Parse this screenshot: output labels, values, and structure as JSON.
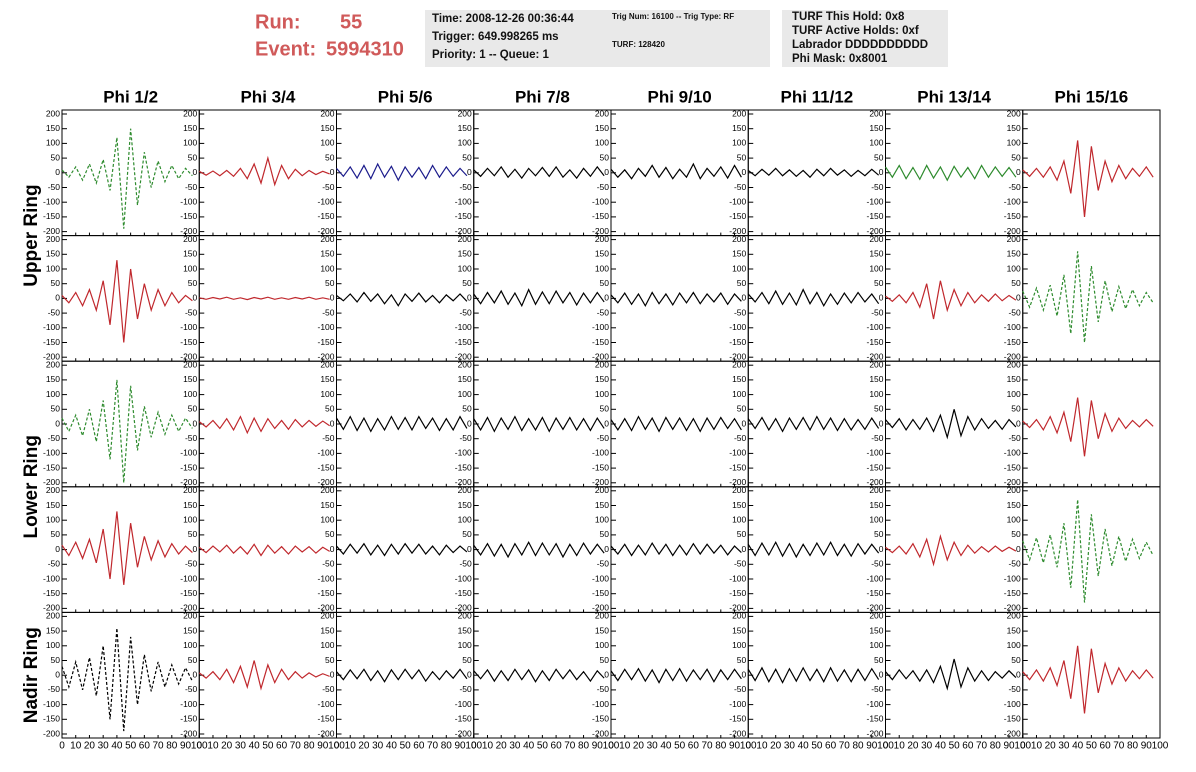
{
  "header": {
    "run_label": "Run:",
    "run": "55",
    "event_label": "Event:",
    "event": "5994310",
    "box1": [
      "Time: 2008-12-26 00:36:44",
      "Trigger: 649.998265 ms",
      "Priority: 1 -- Queue: 1"
    ],
    "box2": [
      "Trig Num: 16100 -- Trig Type: RF",
      "TURF: 128420"
    ],
    "box3": [
      "TURF This Hold: 0x8",
      "TURF Active Holds: 0xf",
      "Labrador DDDDDDDDDD",
      "Phi Mask: 0x8001"
    ]
  },
  "chart_data": {
    "type": "line",
    "columns": [
      "Phi 1/2",
      "Phi 3/4",
      "Phi 5/6",
      "Phi 7/8",
      "Phi 9/10",
      "Phi 11/12",
      "Phi 13/14",
      "Phi 15/16"
    ],
    "rings": [
      "Upper Ring",
      "Lower Ring",
      "Nadir Ring"
    ],
    "xlim": [
      0,
      100
    ],
    "xticks": [
      0,
      10,
      20,
      30,
      40,
      50,
      60,
      70,
      80,
      90,
      100
    ],
    "ylim": [
      -200,
      200
    ],
    "yticks": [
      -200,
      -150,
      -100,
      -50,
      0,
      50,
      100,
      150,
      200
    ],
    "x": [
      0,
      5,
      10,
      15,
      20,
      25,
      30,
      35,
      40,
      45,
      50,
      55,
      60,
      65,
      70,
      75,
      80,
      85,
      90,
      95
    ],
    "panels": [
      [
        {
          "color": "#2e8b2e",
          "dash": true,
          "values": [
            10,
            -15,
            20,
            -25,
            30,
            -35,
            45,
            -60,
            120,
            -190,
            150,
            -110,
            70,
            -50,
            40,
            -30,
            25,
            -20,
            15,
            -10
          ]
        },
        {
          "color": "#c0282d",
          "dash": false,
          "values": [
            5,
            -8,
            6,
            -10,
            8,
            -12,
            15,
            -20,
            30,
            -35,
            50,
            -40,
            25,
            -20,
            12,
            -10,
            8,
            -6,
            5,
            -4
          ]
        },
        {
          "color": "#1c1c8c",
          "dash": false,
          "values": [
            15,
            -12,
            20,
            -18,
            25,
            -20,
            30,
            -15,
            22,
            -25,
            20,
            -15,
            18,
            -20,
            25,
            -15,
            20,
            -12,
            15,
            -10
          ]
        },
        {
          "color": "#000000",
          "dash": false,
          "values": [
            10,
            -12,
            15,
            -10,
            20,
            -15,
            12,
            -18,
            15,
            -10,
            18,
            -12,
            20,
            -15,
            10,
            -18,
            15,
            -12,
            20,
            -10
          ]
        },
        {
          "color": "#000000",
          "dash": false,
          "values": [
            12,
            -15,
            10,
            -20,
            15,
            -12,
            25,
            -15,
            18,
            -20,
            12,
            -15,
            30,
            -20,
            15,
            -12,
            20,
            -18,
            25,
            -15
          ]
        },
        {
          "color": "#000000",
          "dash": false,
          "values": [
            8,
            -10,
            12,
            -8,
            15,
            -10,
            10,
            -12,
            8,
            -15,
            12,
            -10,
            15,
            -8,
            10,
            -12,
            8,
            -10,
            12,
            -8
          ]
        },
        {
          "color": "#2e8b2e",
          "dash": false,
          "values": [
            20,
            -15,
            25,
            -20,
            18,
            -22,
            25,
            -18,
            20,
            -25,
            22,
            -15,
            18,
            -20,
            25,
            -15,
            20,
            -12,
            18,
            -15
          ]
        },
        {
          "color": "#c0282d",
          "dash": false,
          "values": [
            10,
            -12,
            15,
            -15,
            20,
            -25,
            40,
            -70,
            110,
            -150,
            90,
            -60,
            40,
            -30,
            25,
            -20,
            15,
            -12,
            20,
            -15
          ]
        }
      ],
      [
        {
          "color": "#c0282d",
          "dash": false,
          "values": [
            10,
            -15,
            20,
            -25,
            30,
            -40,
            60,
            -90,
            130,
            -150,
            100,
            -70,
            50,
            -40,
            30,
            -25,
            20,
            -15,
            10,
            -8
          ]
        },
        {
          "color": "#c0282d",
          "dash": false,
          "values": [
            2,
            -3,
            3,
            -2,
            4,
            -3,
            2,
            -4,
            3,
            -2,
            4,
            -3,
            2,
            -3,
            3,
            -2,
            4,
            -3,
            2,
            -3
          ]
        },
        {
          "color": "#000000",
          "dash": false,
          "values": [
            10,
            -8,
            15,
            -12,
            20,
            -10,
            15,
            -18,
            12,
            -25,
            15,
            -10,
            18,
            -12,
            10,
            -15,
            12,
            -8,
            15,
            -10
          ]
        },
        {
          "color": "#000000",
          "dash": false,
          "values": [
            15,
            -18,
            20,
            -15,
            25,
            -20,
            18,
            -25,
            30,
            -20,
            22,
            -18,
            25,
            -15,
            20,
            -22,
            18,
            -15,
            20,
            -12
          ]
        },
        {
          "color": "#000000",
          "dash": false,
          "values": [
            12,
            -15,
            18,
            -20,
            15,
            -25,
            20,
            -18,
            15,
            -22,
            18,
            -15,
            20,
            -18,
            15,
            -12,
            18,
            -20,
            15,
            -10
          ]
        },
        {
          "color": "#000000",
          "dash": false,
          "values": [
            15,
            -12,
            20,
            -18,
            25,
            -20,
            18,
            -22,
            30,
            -18,
            20,
            -25,
            15,
            -20,
            18,
            -15,
            20,
            -12,
            15,
            -18
          ]
        },
        {
          "color": "#c0282d",
          "dash": false,
          "values": [
            8,
            -10,
            12,
            -15,
            20,
            -30,
            50,
            -70,
            60,
            -40,
            30,
            -25,
            20,
            -15,
            12,
            -10,
            15,
            -8,
            10,
            -6
          ]
        },
        {
          "color": "#2e8b2e",
          "dash": true,
          "values": [
            25,
            -30,
            35,
            -40,
            45,
            -60,
            80,
            -120,
            160,
            -150,
            110,
            -80,
            60,
            -45,
            40,
            -35,
            30,
            -25,
            20,
            -15
          ]
        }
      ],
      [
        {
          "color": "#2e8b2e",
          "dash": true,
          "values": [
            20,
            -25,
            30,
            -40,
            50,
            -60,
            80,
            -120,
            150,
            -200,
            130,
            -90,
            60,
            -45,
            40,
            -35,
            30,
            -25,
            20,
            -15
          ]
        },
        {
          "color": "#c0282d",
          "dash": false,
          "values": [
            8,
            -10,
            12,
            -15,
            18,
            -20,
            25,
            -30,
            20,
            -25,
            18,
            -15,
            12,
            -18,
            15,
            -10,
            12,
            -8,
            10,
            -6
          ]
        },
        {
          "color": "#000000",
          "dash": false,
          "values": [
            20,
            -18,
            25,
            -22,
            20,
            -25,
            18,
            -20,
            25,
            -18,
            22,
            -20,
            25,
            -15,
            20,
            -22,
            18,
            -20,
            25,
            -15
          ]
        },
        {
          "color": "#000000",
          "dash": false,
          "values": [
            18,
            -20,
            22,
            -25,
            20,
            -18,
            25,
            -22,
            18,
            -20,
            22,
            -25,
            20,
            -18,
            22,
            -20,
            18,
            -22,
            20,
            -15
          ]
        },
        {
          "color": "#000000",
          "dash": false,
          "values": [
            15,
            -20,
            18,
            -22,
            25,
            -18,
            20,
            -25,
            22,
            -18,
            20,
            -22,
            18,
            -25,
            20,
            -18,
            22,
            -15,
            18,
            -20
          ]
        },
        {
          "color": "#000000",
          "dash": false,
          "values": [
            18,
            -15,
            22,
            -20,
            18,
            -25,
            20,
            -18,
            22,
            -20,
            25,
            -18,
            20,
            -22,
            18,
            -20,
            15,
            -18,
            20,
            -15
          ]
        },
        {
          "color": "#000000",
          "dash": false,
          "values": [
            15,
            -12,
            18,
            -20,
            15,
            -18,
            20,
            -25,
            30,
            -45,
            50,
            -40,
            25,
            -20,
            18,
            -15,
            12,
            -18,
            15,
            -10
          ]
        },
        {
          "color": "#c0282d",
          "dash": false,
          "values": [
            10,
            -12,
            15,
            -20,
            25,
            -30,
            40,
            -60,
            90,
            -110,
            80,
            -50,
            35,
            -25,
            20,
            -15,
            12,
            -10,
            15,
            -8
          ]
        }
      ],
      [
        {
          "color": "#c0282d",
          "dash": false,
          "values": [
            15,
            -20,
            25,
            -30,
            35,
            -45,
            70,
            -100,
            130,
            -120,
            90,
            -60,
            45,
            -35,
            30,
            -25,
            20,
            -15,
            12,
            -10
          ]
        },
        {
          "color": "#c0282d",
          "dash": false,
          "values": [
            8,
            -10,
            12,
            -8,
            15,
            -12,
            10,
            -15,
            18,
            -20,
            15,
            -12,
            10,
            -15,
            12,
            -8,
            10,
            -12,
            8,
            -6
          ]
        },
        {
          "color": "#000000",
          "dash": false,
          "values": [
            12,
            -15,
            18,
            -12,
            20,
            -18,
            15,
            -20,
            18,
            -15,
            20,
            -12,
            18,
            -15,
            12,
            -18,
            15,
            -10,
            12,
            -8
          ]
        },
        {
          "color": "#000000",
          "dash": false,
          "values": [
            15,
            -18,
            20,
            -22,
            18,
            -25,
            20,
            -18,
            25,
            -20,
            22,
            -18,
            20,
            -25,
            18,
            -20,
            22,
            -15,
            18,
            -12
          ]
        },
        {
          "color": "#000000",
          "dash": false,
          "values": [
            12,
            -15,
            18,
            -20,
            15,
            -18,
            22,
            -15,
            18,
            -20,
            15,
            -18,
            20,
            -15,
            18,
            -12,
            15,
            -18,
            12,
            -10
          ]
        },
        {
          "color": "#000000",
          "dash": false,
          "values": [
            18,
            -20,
            22,
            -18,
            25,
            -22,
            20,
            -25,
            18,
            -20,
            22,
            -18,
            25,
            -20,
            18,
            -22,
            20,
            -15,
            18,
            -12
          ]
        },
        {
          "color": "#c0282d",
          "dash": false,
          "values": [
            8,
            -10,
            12,
            -15,
            20,
            -25,
            35,
            -50,
            45,
            -35,
            25,
            -20,
            15,
            -12,
            10,
            -8,
            12,
            -6,
            8,
            -5
          ]
        },
        {
          "color": "#2e8b2e",
          "dash": true,
          "values": [
            30,
            -35,
            40,
            -45,
            50,
            -60,
            90,
            -130,
            170,
            -180,
            120,
            -90,
            70,
            -55,
            45,
            -40,
            35,
            -30,
            25,
            -20
          ]
        }
      ],
      [
        {
          "color": "#000000",
          "dash": true,
          "values": [
            30,
            -40,
            45,
            -50,
            60,
            -70,
            100,
            -150,
            160,
            -190,
            130,
            -100,
            70,
            -55,
            45,
            -40,
            35,
            -30,
            25,
            -20
          ]
        },
        {
          "color": "#c0282d",
          "dash": false,
          "values": [
            8,
            -10,
            12,
            -15,
            20,
            -25,
            30,
            -40,
            50,
            -45,
            35,
            -25,
            20,
            -15,
            12,
            -10,
            8,
            -6,
            5,
            -4
          ]
        },
        {
          "color": "#000000",
          "dash": false,
          "values": [
            12,
            -15,
            18,
            -12,
            20,
            -18,
            15,
            -22,
            18,
            -15,
            20,
            -12,
            18,
            -20,
            12,
            -15,
            15,
            -10,
            20,
            -12
          ]
        },
        {
          "color": "#000000",
          "dash": false,
          "values": [
            15,
            -12,
            18,
            -20,
            15,
            -18,
            20,
            -15,
            18,
            -22,
            15,
            -18,
            20,
            -12,
            18,
            -15,
            12,
            -20,
            15,
            -10
          ]
        },
        {
          "color": "#000000",
          "dash": false,
          "values": [
            15,
            -18,
            20,
            -15,
            22,
            -20,
            18,
            -25,
            20,
            -18,
            22,
            -20,
            18,
            -15,
            20,
            -22,
            18,
            -15,
            20,
            -12
          ]
        },
        {
          "color": "#000000",
          "dash": false,
          "values": [
            20,
            -18,
            25,
            -22,
            20,
            -25,
            22,
            -20,
            25,
            -18,
            20,
            -22,
            25,
            -20,
            18,
            -22,
            20,
            -18,
            22,
            -15
          ]
        },
        {
          "color": "#000000",
          "dash": false,
          "values": [
            12,
            -15,
            18,
            -12,
            15,
            -20,
            18,
            -25,
            30,
            -45,
            55,
            -40,
            25,
            -20,
            15,
            -18,
            12,
            -10,
            15,
            -8
          ]
        },
        {
          "color": "#c0282d",
          "dash": false,
          "values": [
            12,
            -15,
            18,
            -20,
            25,
            -35,
            50,
            -80,
            100,
            -130,
            90,
            -60,
            40,
            -30,
            25,
            -20,
            15,
            -12,
            18,
            -10
          ]
        }
      ]
    ]
  }
}
